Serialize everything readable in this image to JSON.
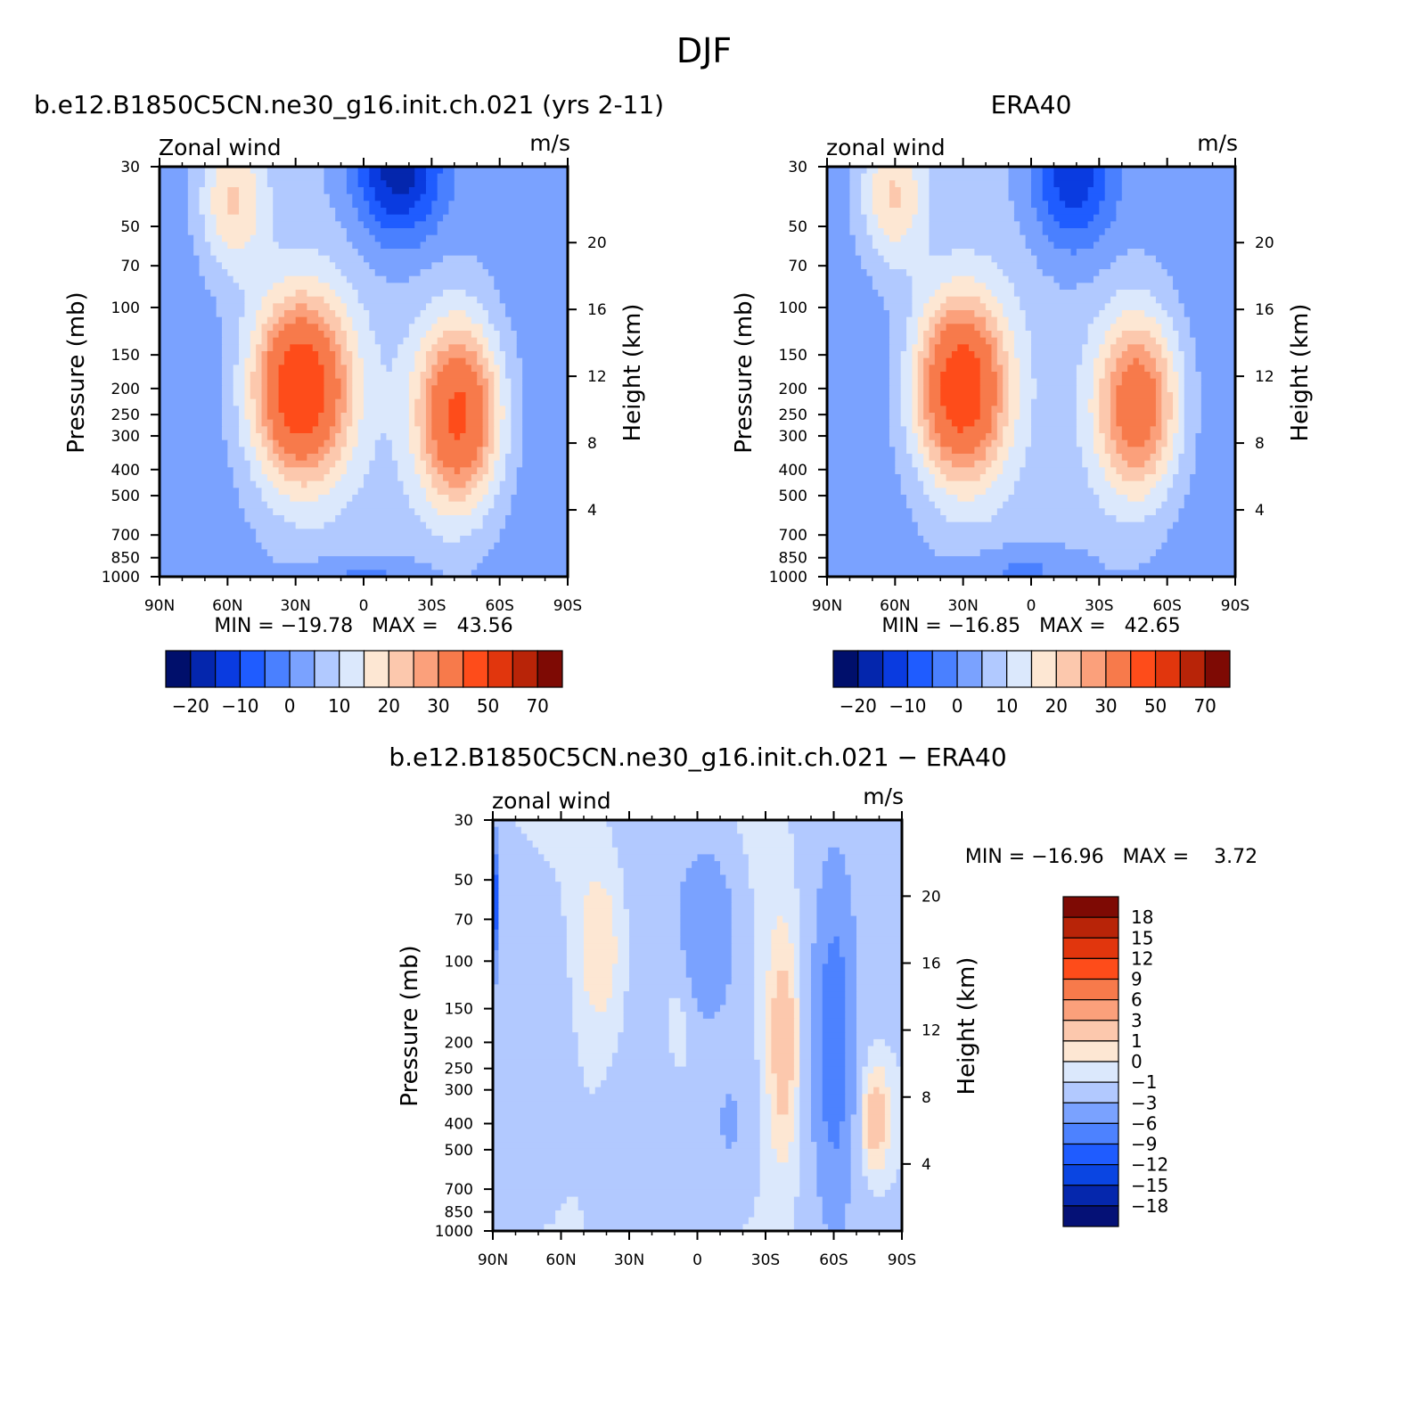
{
  "figure_title": "DJF",
  "colors": {
    "abs_levels": [
      "#000f6b",
      "#0426ad",
      "#0a3be0",
      "#1f5cff",
      "#4a80ff",
      "#7aa2ff",
      "#b1c9ff",
      "#dbe8fc",
      "#fde7d3",
      "#fcc8ad",
      "#fba07b",
      "#f77a4b",
      "#fe4c1a",
      "#e1360d",
      "#b82408",
      "#7e0a04"
    ],
    "diff_levels": [
      "#051176",
      "#0527ad",
      "#0a45e2",
      "#1f5cff",
      "#4d82ff",
      "#7aa2ff",
      "#b2c9ff",
      "#dbe8fc",
      "#fde7d3",
      "#fcc8ad",
      "#fba07b",
      "#f77a4b",
      "#fe4c1a",
      "#e1360d",
      "#b82408",
      "#7e0a04"
    ]
  },
  "chart_data": [
    {
      "id": "model",
      "type": "contour",
      "title": "b.e12.B1850C5CN.ne30_g16.init.ch.021 (yrs 2-11)",
      "left_label": "Zonal wind",
      "units_label": "m/s",
      "ylabel": "Pressure (mb)",
      "y2label": "Height (km)",
      "xlabel": "",
      "x_range": [
        -90,
        90
      ],
      "x_ticks": [
        -90,
        -60,
        -30,
        0,
        30,
        60,
        90
      ],
      "x_tick_labels": [
        "90N",
        "60N",
        "30N",
        "0",
        "30S",
        "60S",
        "90S"
      ],
      "y_range": [
        1000,
        30
      ],
      "y_scale": "log",
      "y_ticks": [
        30,
        50,
        70,
        100,
        150,
        200,
        250,
        300,
        400,
        500,
        700,
        850,
        1000
      ],
      "y_tick_labels": [
        "30",
        "50",
        "70",
        "100",
        "150",
        "200",
        "250",
        "300",
        "400",
        "500",
        "700",
        "850",
        "1000"
      ],
      "y2_ticks": [
        4,
        8,
        12,
        16,
        20
      ],
      "y2_tick_labels": [
        "4",
        "8",
        "12",
        "16",
        "20"
      ],
      "min": -19.78,
      "max": 43.56,
      "minmax_text": "MIN = −19.78   MAX =   43.56",
      "levels": [
        -25,
        -20,
        -15,
        -10,
        -5,
        0,
        5,
        10,
        15,
        20,
        25,
        30,
        40,
        50,
        60,
        70
      ],
      "colorbar_labels": [
        "−20",
        "−10",
        "0",
        "10",
        "20",
        "30",
        "50",
        "70"
      ],
      "features": [
        {
          "kind": "jet",
          "lat": -28,
          "p": 200,
          "amp": 43.6,
          "wlat": 15,
          "wlogp": 0.55
        },
        {
          "kind": "jet",
          "lat": 42,
          "p": 250,
          "amp": 38.0,
          "wlat": 13,
          "wlogp": 0.55
        },
        {
          "kind": "jet",
          "lat": -58,
          "p": 40,
          "amp": 18.0,
          "wlat": 11,
          "wlogp": 0.45
        },
        {
          "kind": "low",
          "lat": 15,
          "p": 30,
          "amp": -25.0,
          "wlat": 14,
          "wlogp": 0.45
        },
        {
          "kind": "surface",
          "lat": 0,
          "p": 1000,
          "amp": -8.0,
          "wlat": 20,
          "wlogp": 0.12
        }
      ]
    },
    {
      "id": "obs",
      "type": "contour",
      "title": "ERA40",
      "left_label": "zonal wind",
      "units_label": "m/s",
      "ylabel": "Pressure (mb)",
      "y2label": "Height (km)",
      "xlabel": "",
      "x_range": [
        -90,
        90
      ],
      "x_ticks": [
        -90,
        -60,
        -30,
        0,
        30,
        60,
        90
      ],
      "x_tick_labels": [
        "90N",
        "60N",
        "30N",
        "0",
        "30S",
        "60S",
        "90S"
      ],
      "y_range": [
        1000,
        30
      ],
      "y_scale": "log",
      "y_ticks": [
        30,
        50,
        70,
        100,
        150,
        200,
        250,
        300,
        400,
        500,
        700,
        850,
        1000
      ],
      "y_tick_labels": [
        "30",
        "50",
        "70",
        "100",
        "150",
        "200",
        "250",
        "300",
        "400",
        "500",
        "700",
        "850",
        "1000"
      ],
      "y2_ticks": [
        4,
        8,
        12,
        16,
        20
      ],
      "y2_tick_labels": [
        "4",
        "8",
        "12",
        "16",
        "20"
      ],
      "min": -16.85,
      "max": 42.65,
      "minmax_text": "MIN = −16.85   MAX =   42.65",
      "levels": [
        -25,
        -20,
        -15,
        -10,
        -5,
        0,
        5,
        10,
        15,
        20,
        25,
        30,
        40,
        50,
        60,
        70
      ],
      "colorbar_labels": [
        "−20",
        "−10",
        "0",
        "10",
        "20",
        "30",
        "50",
        "70"
      ],
      "features": [
        {
          "kind": "jet",
          "lat": -31,
          "p": 200,
          "amp": 42.6,
          "wlat": 14,
          "wlogp": 0.55
        },
        {
          "kind": "jet",
          "lat": 47,
          "p": 230,
          "amp": 33.0,
          "wlat": 13,
          "wlogp": 0.55
        },
        {
          "kind": "jet",
          "lat": -61,
          "p": 38,
          "amp": 18.0,
          "wlat": 11,
          "wlogp": 0.45
        },
        {
          "kind": "low",
          "lat": 18,
          "p": 32,
          "amp": -20.0,
          "wlat": 13,
          "wlogp": 0.45
        },
        {
          "kind": "surface",
          "lat": -3,
          "p": 950,
          "amp": -8.0,
          "wlat": 18,
          "wlogp": 0.15
        }
      ]
    },
    {
      "id": "diff",
      "type": "contour",
      "title": "b.e12.B1850C5CN.ne30_g16.init.ch.021 − ERA40",
      "left_label": "zonal wind",
      "units_label": "m/s",
      "ylabel": "Pressure (mb)",
      "y2label": "Height (km)",
      "xlabel": "",
      "x_range": [
        -90,
        90
      ],
      "x_ticks": [
        -90,
        -60,
        -30,
        0,
        30,
        60,
        90
      ],
      "x_tick_labels": [
        "90N",
        "60N",
        "30N",
        "0",
        "30S",
        "60S",
        "90S"
      ],
      "y_range": [
        1000,
        30
      ],
      "y_scale": "log",
      "y_ticks": [
        30,
        50,
        70,
        100,
        150,
        200,
        250,
        300,
        400,
        500,
        700,
        850,
        1000
      ],
      "y_tick_labels": [
        "30",
        "50",
        "70",
        "100",
        "150",
        "200",
        "250",
        "300",
        "400",
        "500",
        "700",
        "850",
        "1000"
      ],
      "y2_ticks": [
        4,
        8,
        12,
        16,
        20
      ],
      "y2_tick_labels": [
        "4",
        "8",
        "12",
        "16",
        "20"
      ],
      "min": -16.96,
      "max": 3.72,
      "minmax_text": "MIN = −16.96   MAX =    3.72",
      "levels": [
        -20,
        -18,
        -15,
        -12,
        -9,
        -6,
        -3,
        -1,
        0,
        1,
        3,
        6,
        9,
        12,
        15,
        18
      ],
      "colorbar_labels": [
        "18",
        "15",
        "12",
        "9",
        "6",
        "3",
        "1",
        "0",
        "−1",
        "−3",
        "−6",
        "−9",
        "−12",
        "−15",
        "−18"
      ],
      "features": [
        {
          "kind": "pos",
          "lat": -42,
          "p": 90,
          "amp": 2.0,
          "wlat": 8,
          "wlogp": 0.6
        },
        {
          "kind": "pos",
          "lat": -8,
          "p": 150,
          "amp": 1.5,
          "wlat": 5,
          "wlogp": 0.4
        },
        {
          "kind": "pos",
          "lat": 38,
          "p": 200,
          "amp": 3.0,
          "wlat": 5,
          "wlogp": 0.7
        },
        {
          "kind": "pos",
          "lat": 78,
          "p": 380,
          "amp": 3.7,
          "wlat": 5,
          "wlogp": 0.35
        },
        {
          "kind": "neg",
          "lat": 60,
          "p": 200,
          "amp": -7.0,
          "wlat": 6,
          "wlogp": 0.9
        },
        {
          "kind": "neg",
          "lat": 5,
          "p": 80,
          "amp": -5.0,
          "wlat": 9,
          "wlogp": 0.5
        },
        {
          "kind": "neg",
          "lat": -70,
          "p": 200,
          "amp": -2.0,
          "wlat": 10,
          "wlogp": 0.9
        },
        {
          "kind": "neg",
          "lat": 15,
          "p": 400,
          "amp": -2.5,
          "wlat": 8,
          "wlogp": 0.5
        },
        {
          "kind": "neg",
          "lat": -90,
          "p": 60,
          "amp": -16.96,
          "wlat": 1.2,
          "wlogp": 0.35
        }
      ]
    }
  ]
}
